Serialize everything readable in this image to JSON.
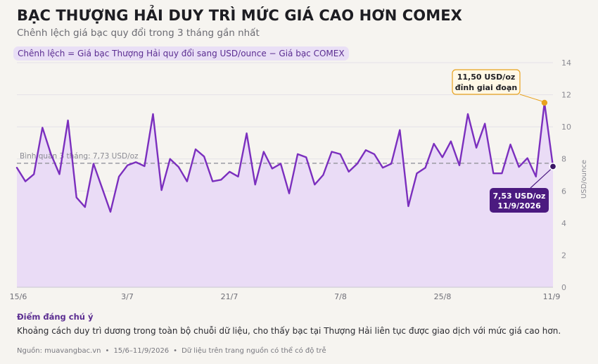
{
  "header": {
    "title": "BẠC THƯỢNG HẢI DUY TRÌ MỨC GIÁ CAO HƠN COMEX",
    "subtitle": "Chênh lệch giá bạc quy đổi trong 3 tháng gần nhất",
    "formula": "Chênh lệch = Giá bạc Thượng Hải quy đổi sang USD/ounce − Giá bạc COMEX"
  },
  "chart_data": {
    "type": "area",
    "x_tick_labels": [
      "15/6",
      "3/7",
      "21/7",
      "7/8",
      "25/8",
      "11/9"
    ],
    "y_ticks": [
      0,
      2,
      4,
      6,
      8,
      10,
      12,
      14
    ],
    "ylim": [
      0,
      14
    ],
    "ylabel": "USD/ounce",
    "y_axis_side": "right",
    "grid": true,
    "average": {
      "value": 7.73,
      "label": "Bình quân 3 tháng: 7,73 USD/oz"
    },
    "series": [
      {
        "values": [
          7.45,
          6.6,
          7.05,
          9.95,
          8.3,
          7.05,
          10.4,
          5.6,
          5.0,
          7.7,
          6.2,
          4.7,
          6.9,
          7.6,
          7.8,
          7.55,
          10.8,
          6.05,
          8.0,
          7.5,
          6.6,
          8.6,
          8.15,
          6.6,
          6.7,
          7.2,
          6.9,
          9.6,
          6.4,
          8.45,
          7.4,
          7.7,
          5.85,
          8.3,
          8.1,
          6.4,
          7.0,
          8.45,
          8.3,
          7.2,
          7.7,
          8.55,
          8.3,
          7.45,
          7.7,
          9.8,
          5.05,
          7.1,
          7.45,
          8.95,
          8.1,
          9.1,
          7.6,
          10.8,
          8.7,
          10.2,
          7.1,
          7.1,
          8.9,
          7.5,
          8.05,
          6.9,
          11.5,
          7.53
        ]
      }
    ],
    "annotations": {
      "peak": {
        "value_text": "11,50 USD/oz",
        "label": "đỉnh giai đoạn",
        "value": 11.5,
        "index": 62
      },
      "last": {
        "value_text": "7,53 USD/oz",
        "label": "11/9/2026",
        "value": 7.53,
        "index": 63
      }
    },
    "colors": {
      "line": "#7b2fbe",
      "area": "#eadcf6",
      "average": "#9a9aa2",
      "peak_marker": "#e8a21e",
      "last_marker": "#3b1766",
      "last_box": "#4b1a80",
      "peak_box_border": "#e8a21e",
      "peak_box_bg": "#fff8e6"
    }
  },
  "notes": {
    "title": "Điểm đáng chú ý",
    "text": "Khoảng cách duy trì dương trong toàn bộ chuỗi dữ liệu, cho thấy bạc tại Thượng Hải liên tục được giao dịch với mức giá cao hơn."
  },
  "footer": {
    "source": "Nguồn: muavangbac.vn",
    "range": "15/6–11/9/2026",
    "disclaimer": "Dữ liệu trên trang nguồn có thể có độ trễ"
  }
}
